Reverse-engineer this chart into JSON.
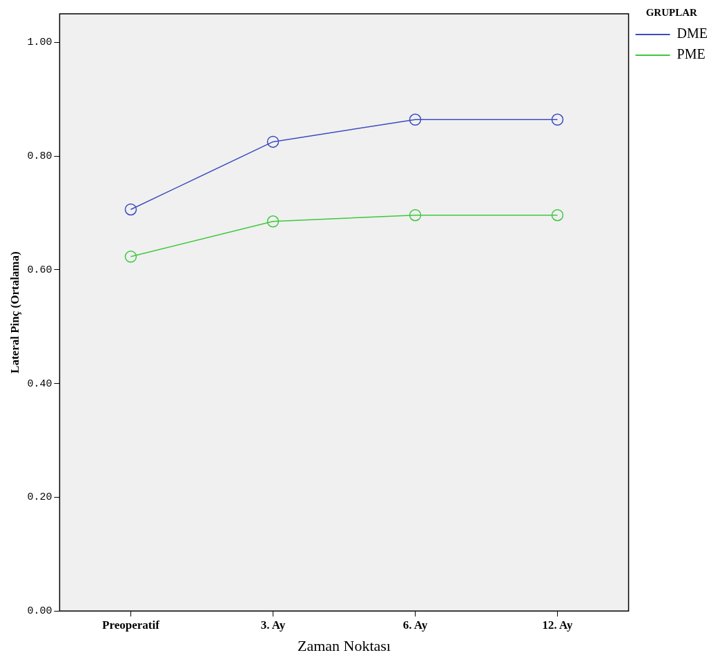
{
  "chart_data": {
    "type": "line",
    "xlabel": "Zaman Noktası",
    "ylabel": "Lateral Pinç (Ortalama)",
    "legend_title": "GRUPLAR",
    "categories": [
      "Preoperatif",
      "3. Ay",
      "6. Ay",
      "12. Ay"
    ],
    "series": [
      {
        "name": "DME",
        "color": "#3b4cc0",
        "values": [
          0.706,
          0.825,
          0.864,
          0.864
        ]
      },
      {
        "name": "PME",
        "color": "#3cc83c",
        "values": [
          0.623,
          0.685,
          0.696,
          0.696
        ]
      }
    ],
    "ylim": [
      0,
      1.05
    ],
    "yticks": [
      {
        "value": 0,
        "label": "0.00"
      },
      {
        "value": 0.2,
        "label": "0.20"
      },
      {
        "value": 0.4,
        "label": "0.40"
      },
      {
        "value": 0.6,
        "label": "0.60"
      },
      {
        "value": 0.8,
        "label": "0.80"
      },
      {
        "value": 1,
        "label": "1.00"
      }
    ],
    "grid": false,
    "legend": "top right",
    "marker": "circle",
    "line_style": "solid"
  }
}
